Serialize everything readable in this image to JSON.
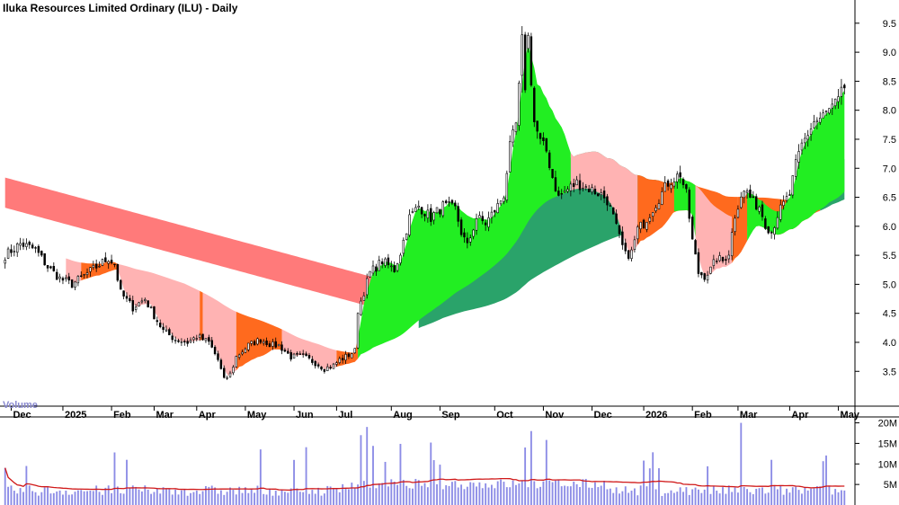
{
  "chart_data": {
    "type": "candlestick",
    "title": "Iluka Resources Limited Ordinary (ILU) - Daily",
    "volume_label": "Volume",
    "price_axis": {
      "min": 2.9,
      "max": 9.9,
      "ticks": [
        "3.5",
        "4.0",
        "4.5",
        "5.0",
        "5.5",
        "6.0",
        "6.5",
        "7.0",
        "7.5",
        "8.0",
        "8.5",
        "9.0",
        "9.5"
      ]
    },
    "volume_axis": {
      "min": 0,
      "max": 21,
      "ticks": [
        {
          "v": 5,
          "label": "5M"
        },
        {
          "v": 10,
          "label": "10M"
        },
        {
          "v": 15,
          "label": "15M"
        },
        {
          "v": 20,
          "label": "20M"
        }
      ]
    },
    "x_axis_labels": [
      "Dec",
      "2025",
      "Feb",
      "Mar",
      "Apr",
      "May",
      "Jun",
      "Jul",
      "Aug",
      "Sep",
      "Oct",
      "Nov",
      "Dec",
      "2026",
      "Feb",
      "Mar",
      "Apr",
      "May"
    ],
    "price_keyframes": [
      [
        0,
        5.5
      ],
      [
        5,
        5.7
      ],
      [
        10,
        5.6
      ],
      [
        14,
        5.3
      ],
      [
        18,
        5.1
      ],
      [
        22,
        5.0
      ],
      [
        26,
        5.15
      ],
      [
        30,
        5.3
      ],
      [
        34,
        5.45
      ],
      [
        36,
        5.35
      ],
      [
        38,
        4.85
      ],
      [
        42,
        4.6
      ],
      [
        46,
        4.75
      ],
      [
        48,
        4.55
      ],
      [
        52,
        4.2
      ],
      [
        56,
        4.05
      ],
      [
        60,
        4.0
      ],
      [
        63,
        4.1
      ],
      [
        67,
        4.0
      ],
      [
        70,
        3.7
      ],
      [
        72,
        3.35
      ],
      [
        74,
        3.45
      ],
      [
        76,
        3.75
      ],
      [
        80,
        3.95
      ],
      [
        84,
        4.05
      ],
      [
        88,
        3.95
      ],
      [
        90,
        3.95
      ],
      [
        94,
        3.75
      ],
      [
        98,
        3.75
      ],
      [
        102,
        3.65
      ],
      [
        105,
        3.55
      ],
      [
        108,
        3.6
      ],
      [
        110,
        3.7
      ],
      [
        112,
        3.75
      ],
      [
        115,
        3.85
      ],
      [
        116,
        4.55
      ],
      [
        120,
        5.2
      ],
      [
        124,
        5.4
      ],
      [
        128,
        5.25
      ],
      [
        130,
        5.55
      ],
      [
        133,
        6.15
      ],
      [
        136,
        6.35
      ],
      [
        140,
        6.15
      ],
      [
        144,
        6.35
      ],
      [
        148,
        6.3
      ],
      [
        150,
        5.9
      ],
      [
        152,
        5.65
      ],
      [
        155,
        6.15
      ],
      [
        158,
        6.05
      ],
      [
        162,
        6.35
      ],
      [
        164,
        6.55
      ],
      [
        166,
        7.35
      ],
      [
        168,
        7.75
      ],
      [
        170,
        9.0
      ],
      [
        172,
        9.25
      ],
      [
        174,
        7.8
      ],
      [
        176,
        7.45
      ],
      [
        178,
        7.3
      ],
      [
        180,
        6.85
      ],
      [
        182,
        6.5
      ],
      [
        184,
        6.6
      ],
      [
        188,
        6.75
      ],
      [
        192,
        6.65
      ],
      [
        196,
        6.55
      ],
      [
        198,
        6.45
      ],
      [
        200,
        6.15
      ],
      [
        202,
        5.8
      ],
      [
        204,
        5.5
      ],
      [
        206,
        5.55
      ],
      [
        208,
        5.95
      ],
      [
        210,
        6.05
      ],
      [
        214,
        6.4
      ],
      [
        218,
        6.75
      ],
      [
        222,
        6.9
      ],
      [
        224,
        6.55
      ],
      [
        226,
        5.75
      ],
      [
        228,
        5.2
      ],
      [
        230,
        5.15
      ],
      [
        232,
        5.25
      ],
      [
        234,
        5.45
      ],
      [
        236,
        5.4
      ],
      [
        238,
        5.55
      ],
      [
        240,
        6.2
      ],
      [
        242,
        6.55
      ],
      [
        244,
        6.6
      ],
      [
        246,
        6.4
      ],
      [
        248,
        6.35
      ],
      [
        250,
        6.05
      ],
      [
        252,
        5.9
      ],
      [
        254,
        6.2
      ],
      [
        258,
        6.55
      ],
      [
        260,
        7.05
      ],
      [
        262,
        7.4
      ],
      [
        264,
        7.6
      ],
      [
        266,
        7.8
      ],
      [
        268,
        7.85
      ],
      [
        270,
        7.95
      ],
      [
        272,
        8.05
      ],
      [
        274,
        8.15
      ],
      [
        276,
        8.4
      ]
    ],
    "mas": {
      "short": {
        "periods_fast": [
          3,
          5,
          8,
          10,
          12,
          15
        ],
        "periods_slow": [
          30,
          35,
          40,
          45,
          50,
          60
        ],
        "start_index": 0
      },
      "long": {
        "periods_fast": [
          30,
          35,
          40,
          45,
          50,
          60
        ],
        "periods_slow": [
          60,
          70,
          80,
          90,
          100,
          110
        ],
        "start_index": 136
      },
      "pre_long_band": {
        "start": 6.58,
        "end": 4.65,
        "width": 0.52
      }
    },
    "colors": {
      "up_candle_fill": "#ffffff",
      "candle_outline": "#000000",
      "short_band_up": "#22ee22",
      "short_band_down": "#ff6a1e",
      "short_band_light_down": "#ffb3b3",
      "long_band_up": "#2aa36a",
      "long_band_down": "#ff6a1e",
      "pre_long_band": "#ff7a7a",
      "volume_bar": "#8c8ce6",
      "volume_ma": "#d01818",
      "grid": "#e6e6e6"
    }
  }
}
